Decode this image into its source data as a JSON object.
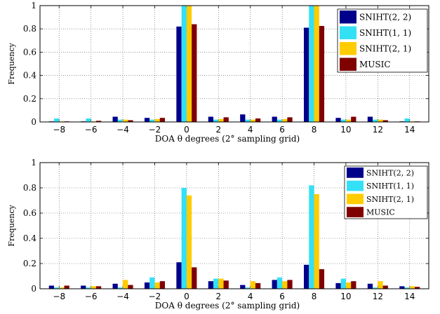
{
  "chart_data": [
    {
      "type": "bar",
      "title": "",
      "xlabel": "DOA θ degrees (2° sampling grid)",
      "ylabel": "Frequency",
      "ylim": [
        0,
        1
      ],
      "yticks": [
        "0",
        "0.2",
        "0.4",
        "0.6",
        "0.8",
        "1"
      ],
      "categories": [
        "-8",
        "-6",
        "-4",
        "-2",
        "0",
        "2",
        "4",
        "6",
        "8",
        "10",
        "12",
        "14"
      ],
      "grid": "dotted",
      "legend_position": "top-right",
      "series": [
        {
          "name": "SNIHT(2, 2)",
          "color": "#00008B",
          "values": [
            0.005,
            0.005,
            0.045,
            0.035,
            0.82,
            0.045,
            0.065,
            0.045,
            0.81,
            0.035,
            0.045,
            0.005
          ]
        },
        {
          "name": "SNIHT(1, 1)",
          "color": "#33E0F5",
          "values": [
            0.03,
            0.03,
            0.02,
            0.02,
            1.0,
            0.02,
            0.02,
            0.02,
            1.0,
            0.02,
            0.02,
            0.03
          ]
        },
        {
          "name": "SNIHT(2, 1)",
          "color": "#FFCC00",
          "values": [
            0.005,
            0.005,
            0.02,
            0.025,
            1.0,
            0.025,
            0.02,
            0.025,
            1.0,
            0.02,
            0.02,
            0.005
          ]
        },
        {
          "name": "MUSIC",
          "color": "#800000",
          "values": [
            0.005,
            0.01,
            0.015,
            0.035,
            0.84,
            0.04,
            0.03,
            0.04,
            0.825,
            0.045,
            0.015,
            0.005
          ]
        }
      ]
    },
    {
      "type": "bar",
      "title": "",
      "xlabel": "DOA θ degrees (2° sampling grid)",
      "ylabel": "Frequency",
      "ylim": [
        0,
        1
      ],
      "yticks": [
        "0",
        "0.2",
        "0.4",
        "0.6",
        "0.8",
        "1"
      ],
      "categories": [
        "-8",
        "-6",
        "-4",
        "-2",
        "0",
        "2",
        "4",
        "6",
        "8",
        "10",
        "12",
        "14"
      ],
      "grid": "dotted",
      "legend_position": "top-right",
      "series": [
        {
          "name": "SNIHT(2, 2)",
          "color": "#00008B",
          "values": [
            0.025,
            0.025,
            0.04,
            0.05,
            0.21,
            0.06,
            0.03,
            0.07,
            0.19,
            0.045,
            0.04,
            0.02
          ]
        },
        {
          "name": "SNIHT(1, 1)",
          "color": "#33E0F5",
          "values": [
            0.01,
            0.01,
            0.01,
            0.09,
            0.8,
            0.08,
            0.01,
            0.09,
            0.82,
            0.08,
            0.01,
            0.01
          ]
        },
        {
          "name": "SNIHT(2, 1)",
          "color": "#FFCC00",
          "values": [
            0.01,
            0.02,
            0.07,
            0.05,
            0.74,
            0.08,
            0.06,
            0.06,
            0.75,
            0.05,
            0.06,
            0.02
          ]
        },
        {
          "name": "MUSIC",
          "color": "#800000",
          "values": [
            0.025,
            0.02,
            0.03,
            0.06,
            0.17,
            0.065,
            0.045,
            0.07,
            0.155,
            0.06,
            0.025,
            0.015
          ]
        }
      ]
    }
  ]
}
